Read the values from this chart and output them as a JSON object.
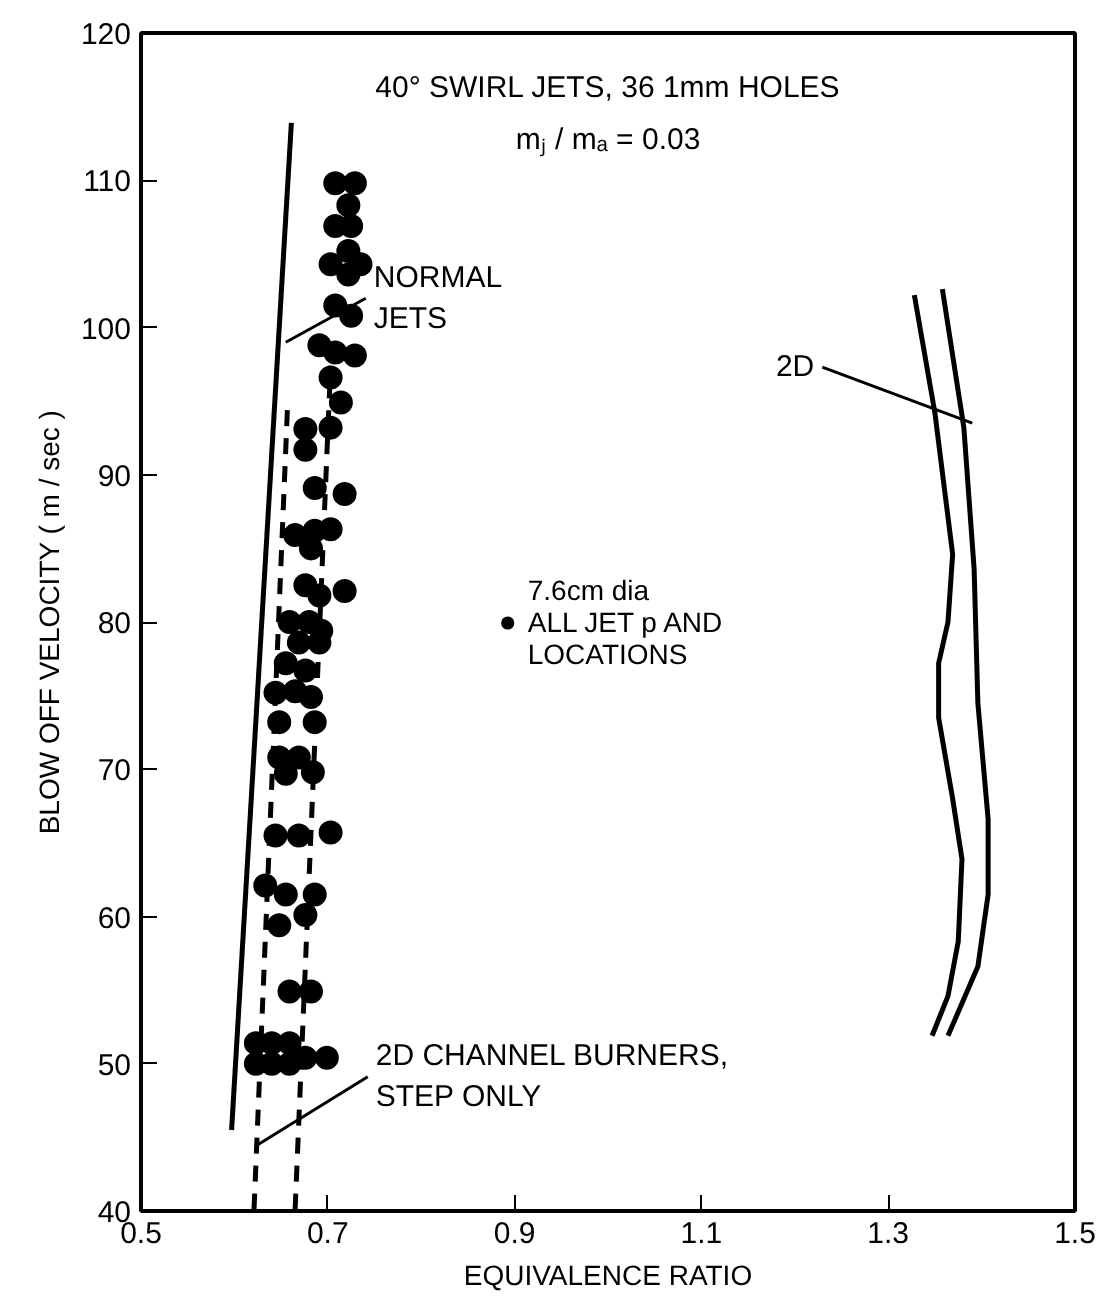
{
  "chart_data": {
    "type": "scatter",
    "title": "40° SWIRL JETS, 36 1mm HOLES",
    "subtitle": "mⱼ / mₐ = 0.03",
    "xlabel": "EQUIVALENCE RATIO",
    "ylabel": "BLOW OFF VELOCITY ( m / sec )",
    "xlim": [
      0.5,
      1.5
    ],
    "ylim": [
      40,
      120
    ],
    "xticks": [
      0.5,
      0.7,
      0.9,
      1.1,
      1.3,
      1.5
    ],
    "yticks": [
      40,
      50,
      60,
      70,
      80,
      90,
      100,
      110,
      120
    ],
    "grid": false,
    "legend": "center",
    "marker": "circle",
    "series": [
      {
        "name": "7.6cm dia\nALL JET p AND\nLOCATIONS",
        "color": "#000000",
        "x": [
          0.708,
          0.729,
          0.722,
          0.708,
          0.725,
          0.703,
          0.722,
          0.735,
          0.722,
          0.708,
          0.725,
          0.691,
          0.708,
          0.729,
          0.703,
          0.714,
          0.703,
          0.676,
          0.676,
          0.686,
          0.718,
          0.665,
          0.686,
          0.703,
          0.682,
          0.676,
          0.691,
          0.718,
          0.659,
          0.68,
          0.693,
          0.669,
          0.691,
          0.655,
          0.676,
          0.644,
          0.665,
          0.682,
          0.648,
          0.686,
          0.648,
          0.669,
          0.684,
          0.655,
          0.644,
          0.669,
          0.703,
          0.633,
          0.655,
          0.686,
          0.648,
          0.676,
          0.659,
          0.682,
          0.623,
          0.64,
          0.659,
          0.623,
          0.64,
          0.659,
          0.676,
          0.699
        ],
        "values": [
          109.8,
          109.8,
          108.3,
          106.9,
          106.9,
          104.3,
          105.2,
          104.3,
          103.6,
          101.5,
          100.8,
          98.8,
          98.3,
          98.1,
          96.6,
          94.9,
          93.2,
          93.1,
          91.7,
          89.1,
          88.7,
          85.9,
          86.2,
          86.3,
          85.0,
          82.5,
          81.8,
          82.1,
          80.0,
          80.0,
          79.4,
          78.6,
          78.6,
          77.2,
          76.7,
          75.2,
          75.3,
          74.9,
          73.2,
          73.2,
          70.8,
          70.8,
          69.8,
          69.7,
          65.5,
          65.5,
          65.7,
          62.1,
          61.5,
          61.5,
          59.4,
          60.1,
          54.9,
          54.9,
          51.4,
          51.4,
          51.4,
          50.0,
          50.0,
          50.0,
          50.4,
          50.4
        ]
      },
      {
        "type": "line",
        "color": "#000000",
        "line_style": "solid",
        "marker": "none",
        "x": [
          0.597,
          0.661
        ],
        "values": [
          45.5,
          113.9
        ]
      },
      {
        "type": "line",
        "color": "#000000",
        "line_style": "dashed",
        "marker": "none",
        "x": [
          0.621,
          0.657
        ],
        "values": [
          40.1,
          94.8
        ]
      },
      {
        "type": "line",
        "color": "#000000",
        "line_style": "dashed",
        "marker": "none",
        "x": [
          0.665,
          0.703
        ],
        "values": [
          40.1,
          97.4
        ]
      },
      {
        "type": "line",
        "color": "#000000",
        "line_style": "solid",
        "marker": "none",
        "x": [
          1.328,
          1.35,
          1.369,
          1.364,
          1.354,
          1.354,
          1.369,
          1.379,
          1.375,
          1.364,
          1.347
        ],
        "values": [
          102.2,
          94.2,
          84.6,
          80.0,
          77.2,
          73.5,
          68.0,
          63.9,
          58.3,
          54.6,
          51.9
        ]
      },
      {
        "type": "line",
        "color": "#000000",
        "line_style": "solid",
        "marker": "none",
        "x": [
          1.358,
          1.381,
          1.392,
          1.396,
          1.407,
          1.407,
          1.396,
          1.364
        ],
        "values": [
          102.6,
          93.2,
          83.6,
          74.5,
          66.6,
          61.5,
          56.6,
          51.9
        ]
      }
    ],
    "annotations": [
      {
        "text": "NORMAL\nJETS",
        "x": 0.655,
        "y": 99
      },
      {
        "text": "2D CHANNEL BURNERS,\nSTEP ONLY",
        "x": 0.625,
        "y": 44.5
      },
      {
        "text": "2D",
        "x": 1.39,
        "y": 93.5
      }
    ]
  }
}
